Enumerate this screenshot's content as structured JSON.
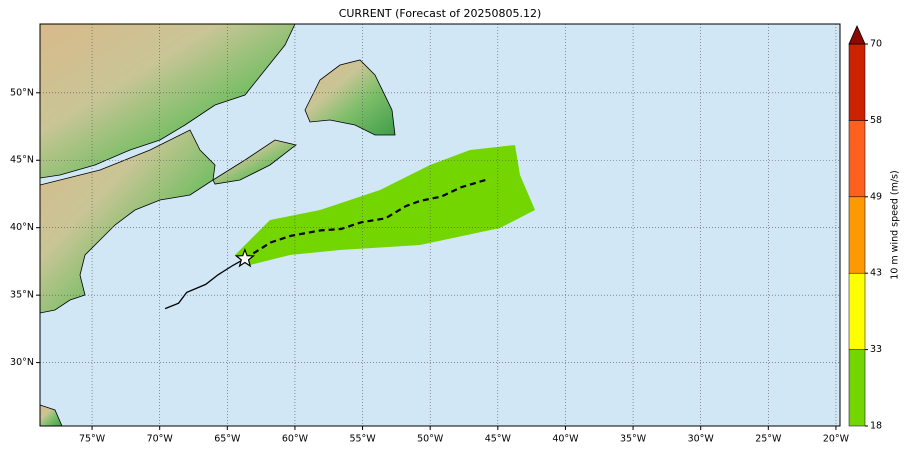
{
  "chart_data": {
    "type": "map",
    "title": "CURRENT (Forecast of 20250805.12)",
    "xlim": [
      -78.85,
      -19.7
    ],
    "ylim": [
      25.3,
      55.1
    ],
    "xticks": [
      {
        "value": -75,
        "label": "75°W"
      },
      {
        "value": -70,
        "label": "70°W"
      },
      {
        "value": -65,
        "label": "65°W"
      },
      {
        "value": -60,
        "label": "60°W"
      },
      {
        "value": -55,
        "label": "55°W"
      },
      {
        "value": -50,
        "label": "50°W"
      },
      {
        "value": -45,
        "label": "45°W"
      },
      {
        "value": -40,
        "label": "40°W"
      },
      {
        "value": -35,
        "label": "35°W"
      },
      {
        "value": -30,
        "label": "30°W"
      },
      {
        "value": -25,
        "label": "25°W"
      },
      {
        "value": -20,
        "label": "20°W"
      }
    ],
    "yticks": [
      {
        "value": 30,
        "label": "30°N"
      },
      {
        "value": 35,
        "label": "35°N"
      },
      {
        "value": 40,
        "label": "40°N"
      },
      {
        "value": 45,
        "label": "45°N"
      },
      {
        "value": 50,
        "label": "50°N"
      }
    ],
    "grid": true,
    "ocean_color": "#d1e7f6",
    "swath_color": "#74d600",
    "track": {
      "color": "#000000",
      "lon": [
        -69.6,
        -68.6,
        -68.0,
        -66.6,
        -65.7,
        -64.6,
        -63.7
      ],
      "lat": [
        34.0,
        34.4,
        35.2,
        35.8,
        36.5,
        37.2,
        37.7
      ]
    },
    "forecast_track": {
      "color": "#000000",
      "lon": [
        -63.7,
        -61.8,
        -60.3,
        -58.1,
        -56.6,
        -55.1,
        -53.3,
        -51.8,
        -50.7,
        -49.2,
        -47.7,
        -45.7
      ],
      "lat": [
        37.7,
        38.9,
        39.4,
        39.8,
        39.9,
        40.4,
        40.7,
        41.6,
        42.0,
        42.3,
        43.0,
        43.6
      ]
    },
    "colorbar": {
      "label": "10 m wind speed (m/s)",
      "ticks": [
        18,
        33,
        43,
        49,
        58,
        70
      ],
      "colors": [
        "#74d600",
        "#ffff00",
        "#ff9900",
        "#ff6020",
        "#cc2200"
      ],
      "extend_color": "#8b0a00"
    }
  }
}
